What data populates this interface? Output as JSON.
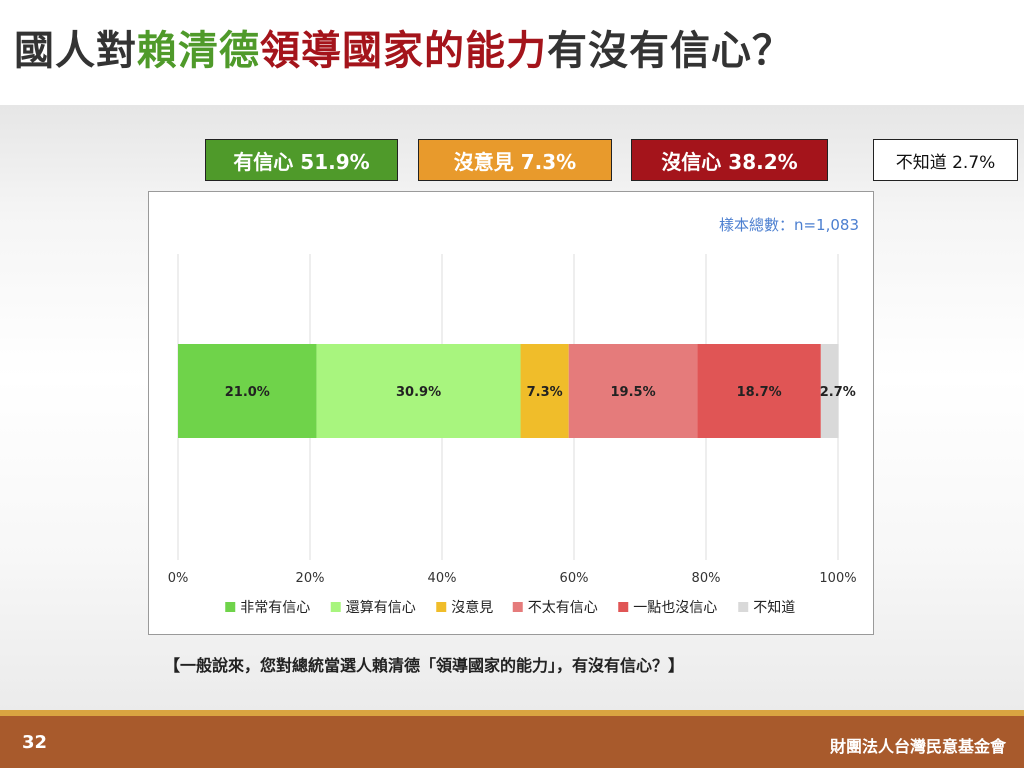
{
  "title": {
    "part1": "國人對",
    "part2": "賴清德",
    "part3": "領導國家的能力",
    "part4": "有沒有信心？"
  },
  "colors": {
    "title_green": "#4f9a2a",
    "title_red": "#a4141b",
    "footer_brown": "#a85a2c",
    "footer_stripe": "#d9a441",
    "sample_note_blue": "#4c7fd0"
  },
  "summary": [
    {
      "label": "有信心 51.9%",
      "color": "#4f9a2a"
    },
    {
      "label": "沒意見 7.3%",
      "color": "#e89a2c"
    },
    {
      "label": "沒信心 38.2%",
      "color": "#a4141b"
    },
    {
      "label": "不知道 2.7%",
      "color": "#ffffff"
    }
  ],
  "sample_note": "樣本總數：n=1,083",
  "question": "【一般說來，您對總統當選人賴清德「領導國家的能力」，有沒有信心？】",
  "footer": {
    "page": "32",
    "org": "財團法人台灣民意基金會"
  },
  "chart_data": {
    "type": "bar",
    "orientation": "horizontal-stacked",
    "categories": [
      ""
    ],
    "series": [
      {
        "name": "非常有信心",
        "values": [
          21.0
        ],
        "label": "21.0%",
        "color": "#6fd34a"
      },
      {
        "name": "還算有信心",
        "values": [
          30.9
        ],
        "label": "30.9%",
        "color": "#a8f57e"
      },
      {
        "name": "沒意見",
        "values": [
          7.3
        ],
        "label": "7.3%",
        "color": "#f0bd2a"
      },
      {
        "name": "不太有信心",
        "values": [
          19.5
        ],
        "label": "19.5%",
        "color": "#e57b7b"
      },
      {
        "name": "一點也沒信心",
        "values": [
          18.7
        ],
        "label": "18.7%",
        "color": "#e05555"
      },
      {
        "name": "不知道",
        "values": [
          2.7
        ],
        "label": "2.7%",
        "color": "#d9d9d9"
      }
    ],
    "xlim": [
      0,
      100
    ],
    "xticks": [
      "0%",
      "20%",
      "40%",
      "60%",
      "80%",
      "100%"
    ],
    "xtick_values": [
      0,
      20,
      40,
      60,
      80,
      100
    ],
    "grid": "vertical",
    "legend": "bottom"
  }
}
